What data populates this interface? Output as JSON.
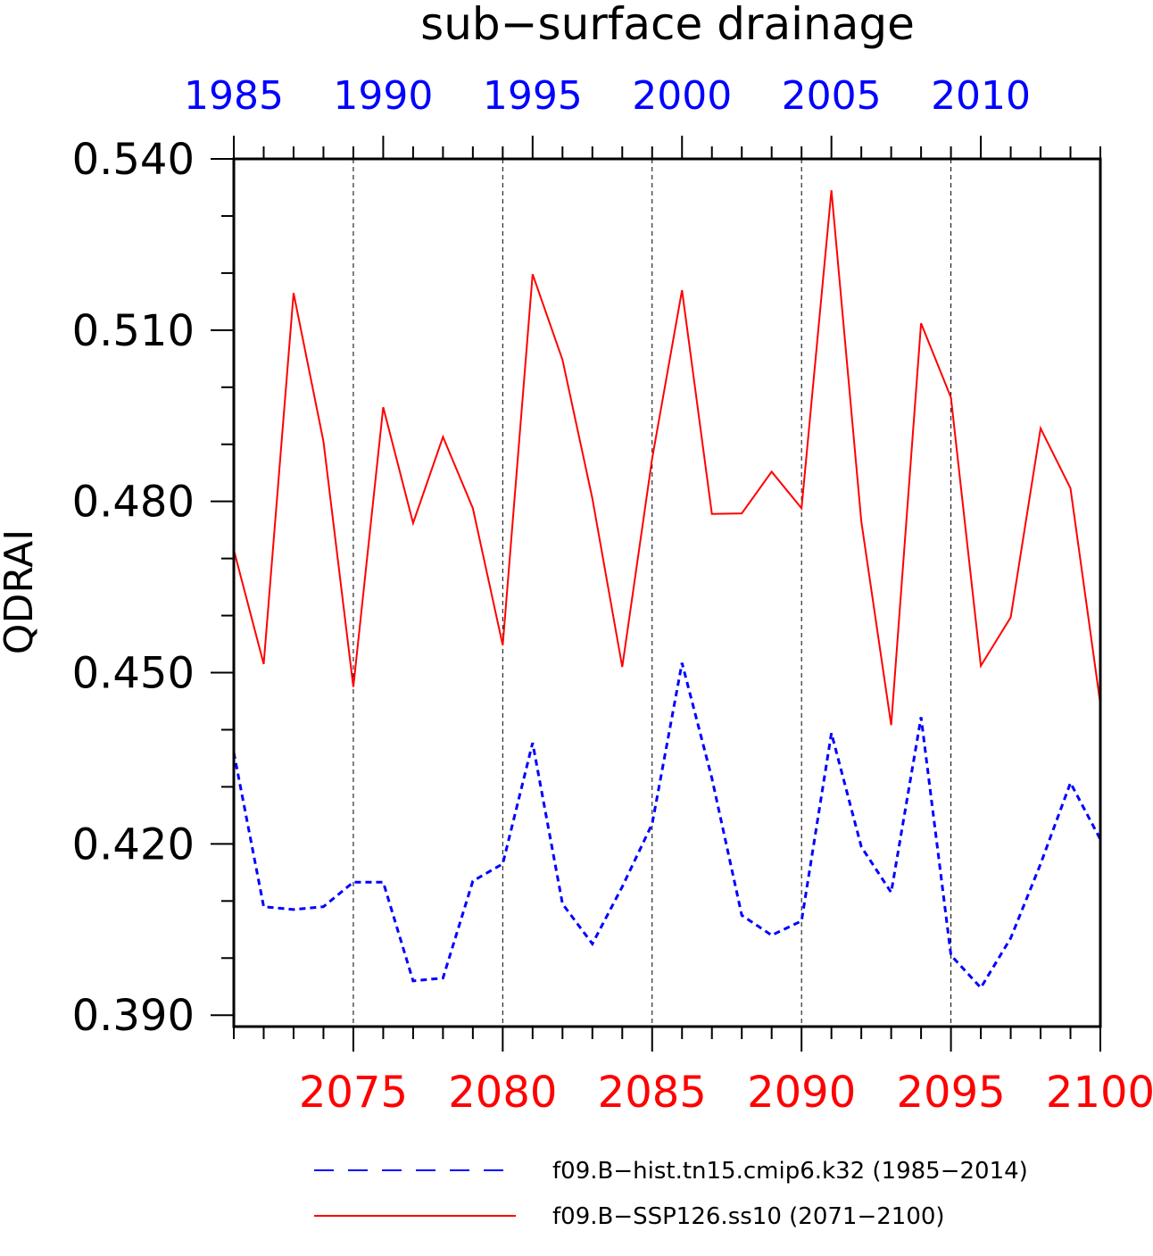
{
  "chart_data": {
    "type": "line",
    "title": "sub−surface drainage",
    "ylabel": "QDRAI",
    "ylim": [
      0.388,
      0.54
    ],
    "yticks": [
      "0.390",
      "0.420",
      "0.450",
      "0.480",
      "0.510",
      "0.540"
    ],
    "x_bottom": {
      "range": [
        2071,
        2100
      ],
      "ticks": [
        "2075",
        "2080",
        "2085",
        "2090",
        "2095",
        "2100"
      ],
      "color": "#ff0000"
    },
    "x_top": {
      "range": [
        1985,
        2014
      ],
      "ticks": [
        "1985",
        "1990",
        "1995",
        "2000",
        "2005",
        "2010"
      ],
      "color": "#0000ff"
    },
    "grid": "vertical dashed at bottom major ticks",
    "legend_position": "bottom",
    "series": [
      {
        "name": "f09.B−hist.tn15.cmip6.k32 (1985−2014)",
        "color": "#0000ff",
        "style": "dashed",
        "x": [
          1985,
          1986,
          1987,
          1988,
          1989,
          1990,
          1991,
          1992,
          1993,
          1994,
          1995,
          1996,
          1997,
          1998,
          1999,
          2000,
          2001,
          2002,
          2003,
          2004,
          2005,
          2006,
          2007,
          2008,
          2009,
          2010,
          2011,
          2012,
          2013,
          2014
        ],
        "values": [
          0.436,
          0.409,
          0.4085,
          0.409,
          0.4133,
          0.4133,
          0.396,
          0.3965,
          0.4135,
          0.4165,
          0.4377,
          0.4095,
          0.4025,
          0.4125,
          0.4235,
          0.4517,
          0.4315,
          0.4075,
          0.404,
          0.4065,
          0.4394,
          0.4195,
          0.4115,
          0.4422,
          0.4005,
          0.3948,
          0.4035,
          0.4165,
          0.4307,
          0.4208
        ]
      },
      {
        "name": "f09.B−SSP126.ss10 (2071−2100)",
        "color": "#ff0000",
        "style": "solid",
        "x": [
          2071,
          2072,
          2073,
          2074,
          2075,
          2076,
          2077,
          2078,
          2079,
          2080,
          2081,
          2082,
          2083,
          2084,
          2085,
          2086,
          2087,
          2088,
          2089,
          2090,
          2091,
          2092,
          2093,
          2094,
          2095,
          2096,
          2097,
          2098,
          2099,
          2100
        ],
        "values": [
          0.4715,
          0.4515,
          0.5165,
          0.4905,
          0.4475,
          0.4965,
          0.4762,
          0.4913,
          0.4788,
          0.4548,
          0.5198,
          0.5048,
          0.4805,
          0.451,
          0.4875,
          0.517,
          0.4778,
          0.4779,
          0.4852,
          0.4788,
          0.5345,
          0.4765,
          0.4408,
          0.5112,
          0.4982,
          0.4512,
          0.4597,
          0.4928,
          0.4823,
          0.4445
        ]
      }
    ]
  }
}
